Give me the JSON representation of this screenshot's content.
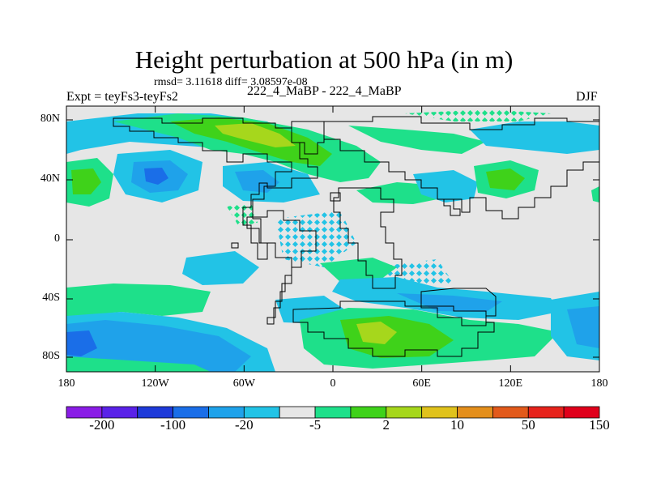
{
  "title": "Height perturbation at 500 hPa (in m)",
  "stats": "rmsd= 3.11618 diff= 3.08597e-08",
  "expt": "Expt = teyFs3-teyFs2",
  "subtitle": "222_4_MaBP - 222_4_MaBP",
  "season": "DJF",
  "lat_labels": [
    "80N",
    "40N",
    "0",
    "40S",
    "80S"
  ],
  "lon_labels": [
    "180",
    "120W",
    "60W",
    "0",
    "60E",
    "120E",
    "180"
  ],
  "colorbar": {
    "colors": [
      "#8a1de6",
      "#5a22e8",
      "#1e3ad9",
      "#1a6ee8",
      "#1fa2ea",
      "#22c3e6",
      "#e6e6e6",
      "#1ee08a",
      "#3fd21a",
      "#a6d71c",
      "#e0c21c",
      "#e48f1c",
      "#e25a1b",
      "#e6231c",
      "#e0001b"
    ],
    "labels": [
      "-200",
      "-100",
      "-20",
      "-5",
      "2",
      "10",
      "50",
      "150"
    ]
  },
  "colors": {
    "background": "#e6e6e6",
    "light_blue": "#22c3e6",
    "mid_blue": "#1fa2ea",
    "deep_blue": "#1a6ee8",
    "green": "#1ee08a",
    "bright_green": "#3fd21a",
    "yellow_green": "#a6d71c"
  }
}
